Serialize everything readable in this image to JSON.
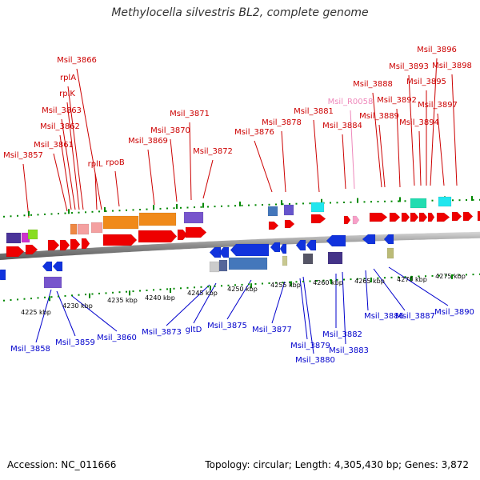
{
  "title": "Methylocella silvestris BL2, complete genome",
  "footer": {
    "accession": "Accession: NC_011666",
    "topology": "Topology: circular; Length: 4,305,430 bp; Genes: 3,872"
  },
  "colors": {
    "upper_label": "#cc0000",
    "rna_label": "#ee88bb",
    "lower_label": "#0000cc",
    "forward_gene": "#ee0000",
    "reverse_gene": "#1133dd",
    "tick": "#008800",
    "backbone": "#888888"
  },
  "upper_labels": [
    "Msil_3857",
    "Msil_3861",
    "Msil_3862",
    "Msil_3863",
    "rplK",
    "rplA",
    "Msil_3866",
    "rplL",
    "rpoB",
    "Msil_3869",
    "Msil_3870",
    "Msil_3871",
    "Msil_3872",
    "Msil_3876",
    "Msil_3878",
    "Msil_3881",
    "Msil_R0058",
    "Msil_3884",
    "Msil_3888",
    "Msil_3889",
    "Msil_3892",
    "Msil_3893",
    "Msil_3894",
    "Msil_3895",
    "Msil_3896",
    "Msil_3897",
    "Msil_3898"
  ],
  "lower_labels": [
    "Msil_3858",
    "Msil_3859",
    "Msil_3860",
    "Msil_3873",
    "gltD",
    "Msil_3875",
    "Msil_3877",
    "Msil_3879",
    "Msil_3880",
    "Msil_3882",
    "Msil_3883",
    "Msil_3886",
    "Msil_3887",
    "Msil_3890"
  ],
  "scale_labels": [
    "4225 kbp",
    "4230 kbp",
    "4235 kbp",
    "4240 kbp",
    "4245 kbp",
    "4250 kbp",
    "4255 kbp",
    "4260 kbp",
    "4265 kbp",
    "4270 kbp",
    "4275 kbp"
  ]
}
